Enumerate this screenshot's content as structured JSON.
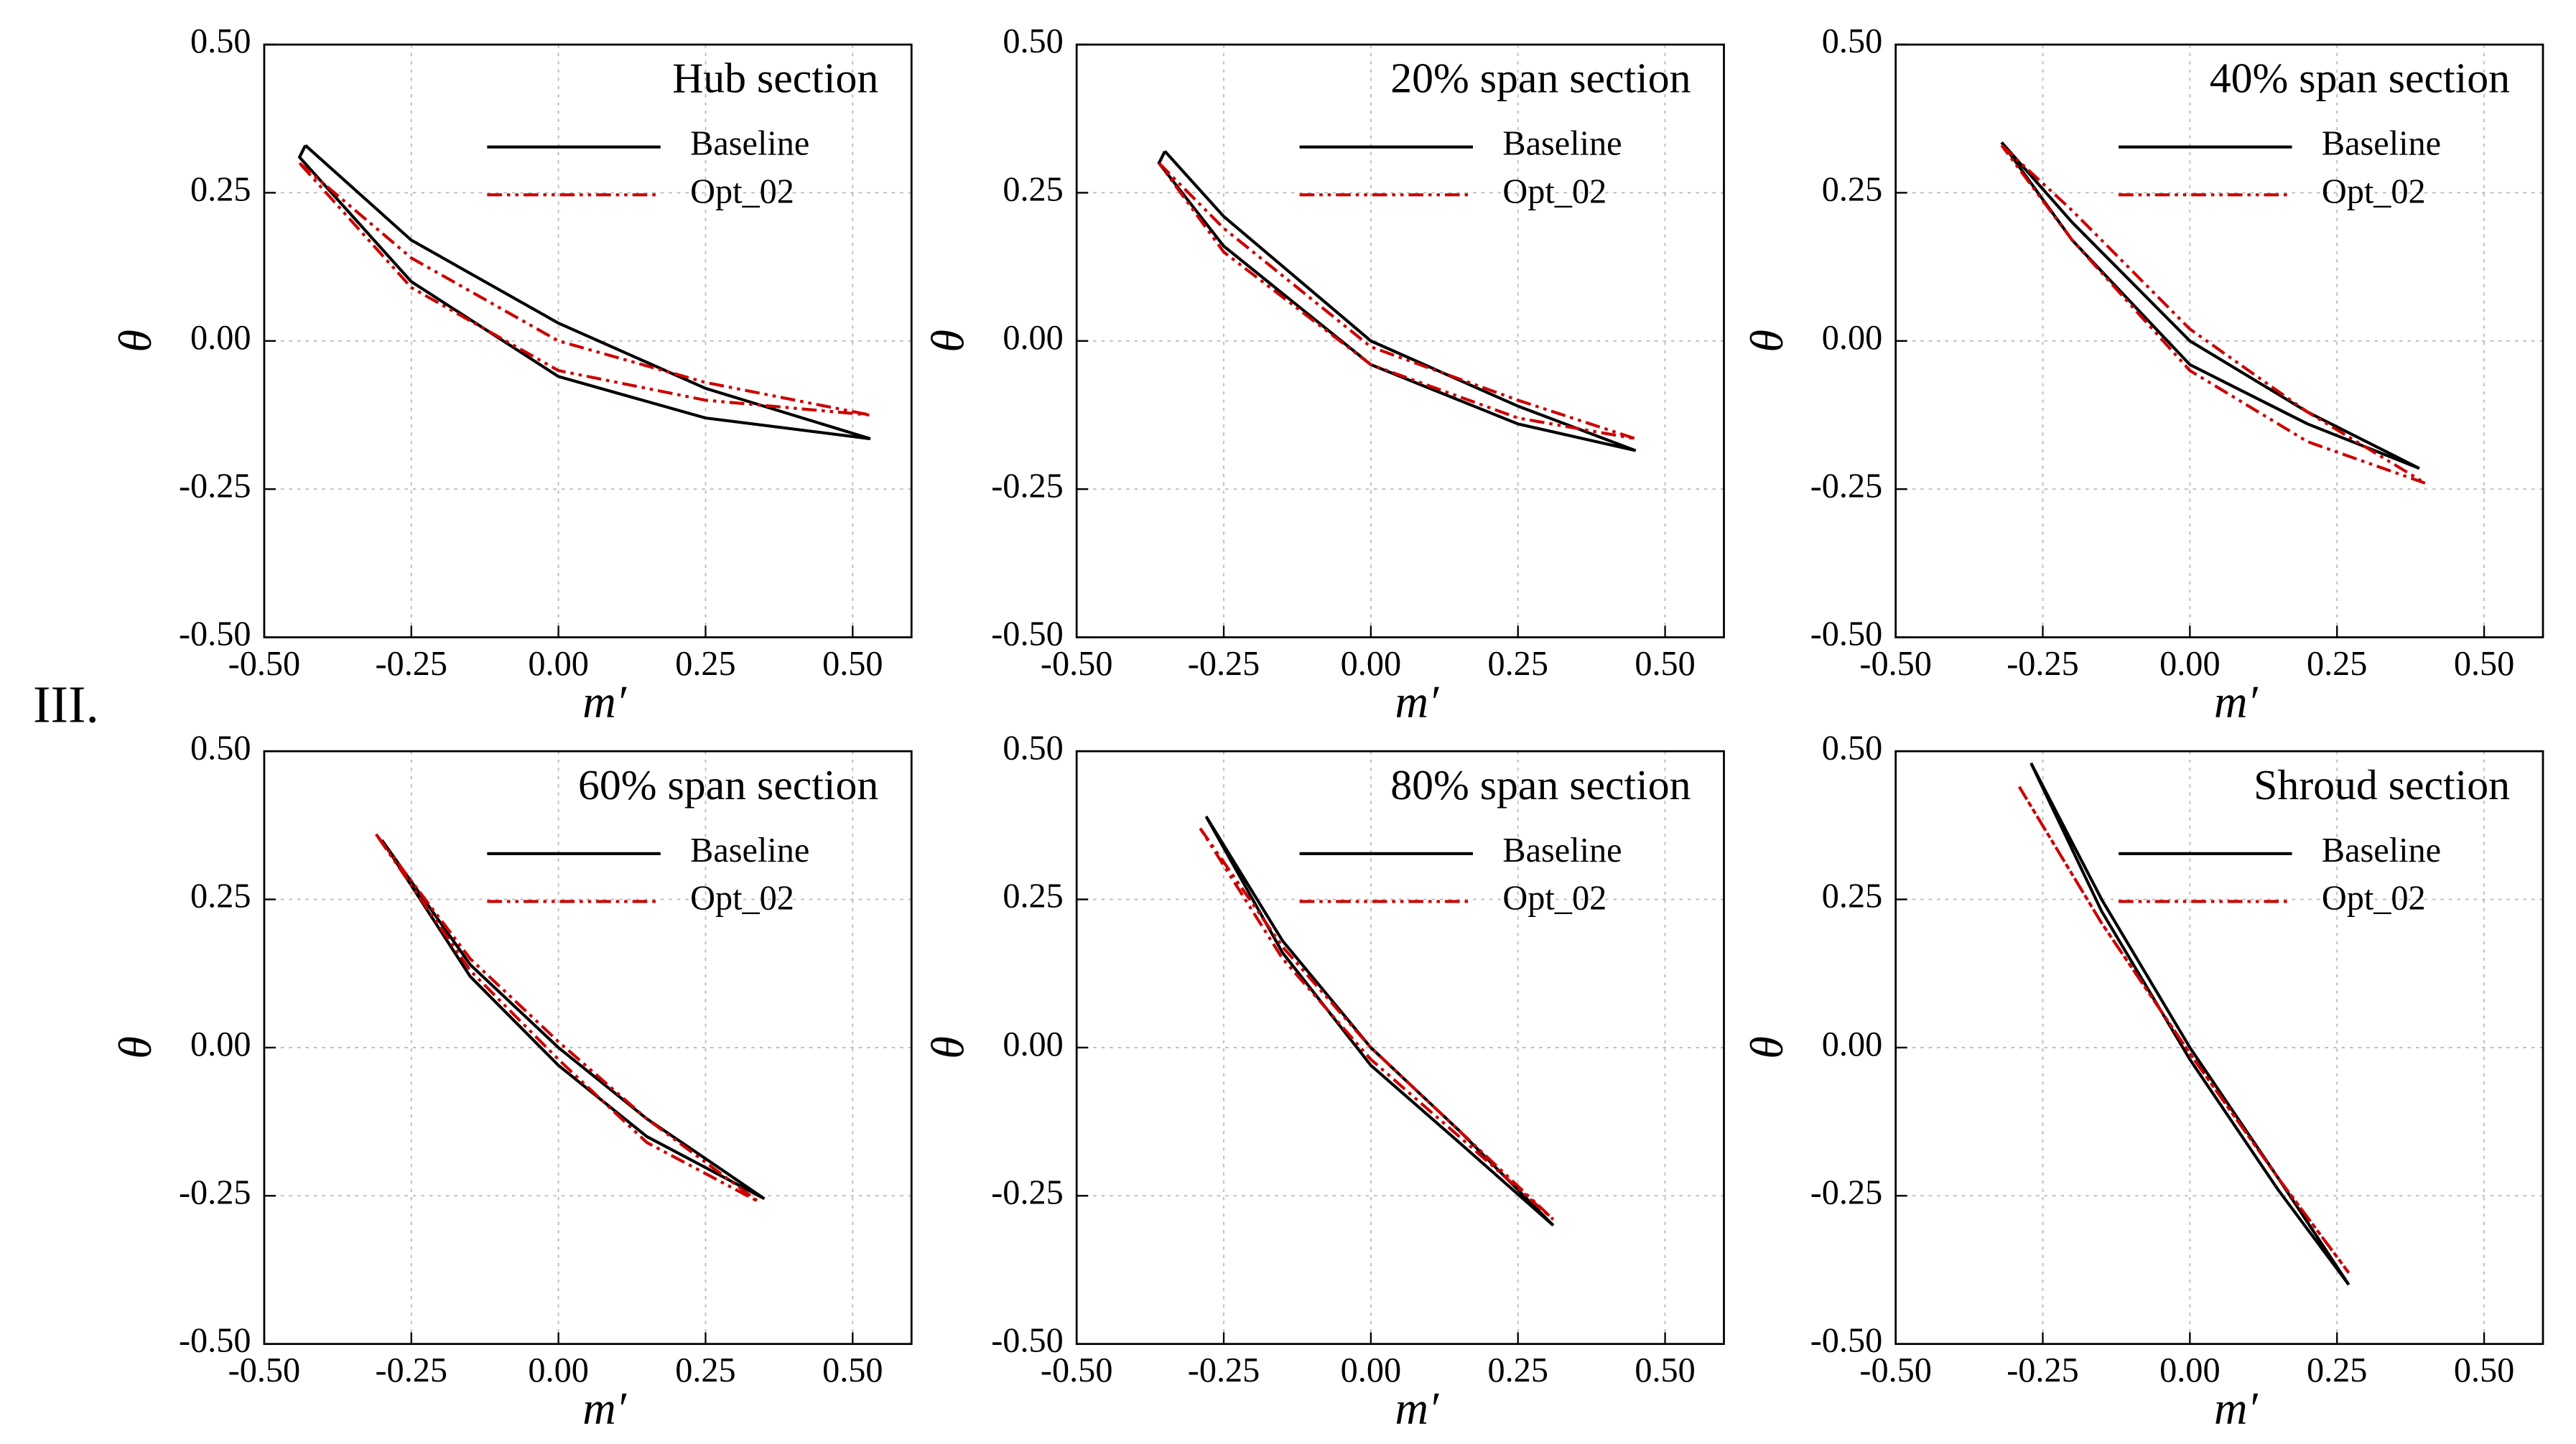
{
  "figure_label": "III.",
  "chart_data": [
    {
      "type": "line",
      "title": "Hub section",
      "x_label": "m′",
      "y_label": "θ",
      "xlim": [
        -0.5,
        0.6
      ],
      "ylim": [
        -0.5,
        0.5
      ],
      "grid": true,
      "legend": "top-right",
      "xticks": [
        {
          "value": -0.5,
          "label": "-0.50"
        },
        {
          "value": -0.25,
          "label": "-0.25"
        },
        {
          "value": 0,
          "label": "0.00"
        },
        {
          "value": 0.25,
          "label": "0.25"
        },
        {
          "value": 0.5,
          "label": "0.50"
        }
      ],
      "yticks": [
        {
          "value": -0.5,
          "label": "-0.50"
        },
        {
          "value": -0.25,
          "label": "-0.25"
        },
        {
          "value": 0,
          "label": "0.00"
        },
        {
          "value": 0.25,
          "label": "0.25"
        },
        {
          "value": 0.5,
          "label": "0.50"
        }
      ],
      "series": [
        {
          "name": "Baseline",
          "color": "#000000",
          "style": "solid",
          "x": [
            -0.43,
            -0.25,
            0,
            0.25,
            0.53,
            0.25,
            0,
            -0.25,
            -0.44,
            -0.43
          ],
          "values": [
            0.33,
            0.17,
            0.03,
            -0.08,
            -0.165,
            -0.13,
            -0.06,
            0.1,
            0.31,
            0.33
          ]
        },
        {
          "name": "Opt_02",
          "color": "#cc0000",
          "style": "dash-dot-dot",
          "x": [
            -0.44,
            -0.25,
            0,
            0.25,
            0.53,
            0.25,
            0,
            -0.25,
            -0.44
          ],
          "values": [
            0.3,
            0.14,
            0,
            -0.07,
            -0.125,
            -0.1,
            -0.05,
            0.09,
            0.3
          ]
        }
      ]
    },
    {
      "type": "line",
      "title": "20% span section",
      "x_label": "m′",
      "y_label": "θ",
      "xlim": [
        -0.5,
        0.6
      ],
      "ylim": [
        -0.5,
        0.5
      ],
      "grid": true,
      "legend": "top-right",
      "xticks": [
        {
          "value": -0.5,
          "label": "-0.50"
        },
        {
          "value": -0.25,
          "label": "-0.25"
        },
        {
          "value": 0,
          "label": "0.00"
        },
        {
          "value": 0.25,
          "label": "0.25"
        },
        {
          "value": 0.5,
          "label": "0.50"
        }
      ],
      "yticks": [
        {
          "value": -0.5,
          "label": "-0.50"
        },
        {
          "value": -0.25,
          "label": "-0.25"
        },
        {
          "value": 0,
          "label": "0.00"
        },
        {
          "value": 0.25,
          "label": "0.25"
        },
        {
          "value": 0.5,
          "label": "0.50"
        }
      ],
      "series": [
        {
          "name": "Baseline",
          "color": "#000000",
          "style": "solid",
          "x": [
            -0.35,
            -0.25,
            0,
            0.25,
            0.45,
            0.25,
            0,
            -0.25,
            -0.36,
            -0.35
          ],
          "values": [
            0.32,
            0.21,
            0,
            -0.11,
            -0.185,
            -0.14,
            -0.04,
            0.16,
            0.3,
            0.32
          ]
        },
        {
          "name": "Opt_02",
          "color": "#cc0000",
          "style": "dash-dot-dot",
          "x": [
            -0.36,
            -0.25,
            0,
            0.25,
            0.45,
            0.25,
            0,
            -0.25,
            -0.36
          ],
          "values": [
            0.3,
            0.19,
            -0.01,
            -0.1,
            -0.165,
            -0.13,
            -0.04,
            0.15,
            0.3
          ]
        }
      ]
    },
    {
      "type": "line",
      "title": "40% span section",
      "x_label": "m′",
      "y_label": "θ",
      "xlim": [
        -0.5,
        0.6
      ],
      "ylim": [
        -0.5,
        0.5
      ],
      "grid": true,
      "legend": "top-right",
      "xticks": [
        {
          "value": -0.5,
          "label": "-0.50"
        },
        {
          "value": -0.25,
          "label": "-0.25"
        },
        {
          "value": 0,
          "label": "0.00"
        },
        {
          "value": 0.25,
          "label": "0.25"
        },
        {
          "value": 0.5,
          "label": "0.50"
        }
      ],
      "yticks": [
        {
          "value": -0.5,
          "label": "-0.50"
        },
        {
          "value": -0.25,
          "label": "-0.25"
        },
        {
          "value": 0,
          "label": "0.00"
        },
        {
          "value": 0.25,
          "label": "0.25"
        },
        {
          "value": 0.5,
          "label": "0.50"
        }
      ],
      "series": [
        {
          "name": "Baseline",
          "color": "#000000",
          "style": "solid",
          "x": [
            -0.32,
            -0.2,
            0,
            0.2,
            0.39,
            0.2,
            0,
            -0.2,
            -0.32
          ],
          "values": [
            0.335,
            0.2,
            0,
            -0.12,
            -0.215,
            -0.14,
            -0.04,
            0.17,
            0.335
          ]
        },
        {
          "name": "Opt_02",
          "color": "#cc0000",
          "style": "dash-dot-dot",
          "x": [
            -0.32,
            -0.2,
            0,
            0.2,
            0.4,
            0.2,
            0,
            -0.2,
            -0.32
          ],
          "values": [
            0.33,
            0.22,
            0.02,
            -0.12,
            -0.24,
            -0.17,
            -0.05,
            0.17,
            0.33
          ]
        }
      ]
    },
    {
      "type": "line",
      "title": "60% span section",
      "x_label": "m′",
      "y_label": "θ",
      "xlim": [
        -0.5,
        0.6
      ],
      "ylim": [
        -0.5,
        0.5
      ],
      "grid": true,
      "legend": "top-right",
      "xticks": [
        {
          "value": -0.5,
          "label": "-0.50"
        },
        {
          "value": -0.25,
          "label": "-0.25"
        },
        {
          "value": 0,
          "label": "0.00"
        },
        {
          "value": 0.25,
          "label": "0.25"
        },
        {
          "value": 0.5,
          "label": "0.50"
        }
      ],
      "yticks": [
        {
          "value": -0.5,
          "label": "-0.50"
        },
        {
          "value": -0.25,
          "label": "-0.25"
        },
        {
          "value": 0,
          "label": "0.00"
        },
        {
          "value": 0.25,
          "label": "0.25"
        },
        {
          "value": 0.5,
          "label": "0.50"
        }
      ],
      "series": [
        {
          "name": "Baseline",
          "color": "#000000",
          "style": "solid",
          "x": [
            -0.3,
            -0.15,
            0,
            0.15,
            0.35,
            0.15,
            0,
            -0.15,
            -0.3
          ],
          "values": [
            0.35,
            0.14,
            0,
            -0.12,
            -0.255,
            -0.15,
            -0.03,
            0.12,
            0.35
          ]
        },
        {
          "name": "Opt_02",
          "color": "#cc0000",
          "style": "dash-dot-dot",
          "x": [
            -0.31,
            -0.15,
            0,
            0.15,
            0.34,
            0.15,
            0,
            -0.15,
            -0.31
          ],
          "values": [
            0.36,
            0.15,
            0.01,
            -0.12,
            -0.26,
            -0.16,
            -0.02,
            0.13,
            0.36
          ]
        }
      ]
    },
    {
      "type": "line",
      "title": "80% span section",
      "x_label": "m′",
      "y_label": "θ",
      "xlim": [
        -0.5,
        0.6
      ],
      "ylim": [
        -0.5,
        0.5
      ],
      "grid": true,
      "legend": "top-right",
      "xticks": [
        {
          "value": -0.5,
          "label": "-0.50"
        },
        {
          "value": -0.25,
          "label": "-0.25"
        },
        {
          "value": 0,
          "label": "0.00"
        },
        {
          "value": 0.25,
          "label": "0.25"
        },
        {
          "value": 0.5,
          "label": "0.50"
        }
      ],
      "yticks": [
        {
          "value": -0.5,
          "label": "-0.50"
        },
        {
          "value": -0.25,
          "label": "-0.25"
        },
        {
          "value": 0,
          "label": "0.00"
        },
        {
          "value": 0.25,
          "label": "0.25"
        },
        {
          "value": 0.5,
          "label": "0.50"
        }
      ],
      "series": [
        {
          "name": "Baseline",
          "color": "#000000",
          "style": "solid",
          "x": [
            -0.28,
            -0.15,
            0,
            0.15,
            0.31,
            0.15,
            0,
            -0.15,
            -0.28
          ],
          "values": [
            0.39,
            0.18,
            0,
            -0.14,
            -0.3,
            -0.16,
            -0.03,
            0.16,
            0.39
          ]
        },
        {
          "name": "Opt_02",
          "color": "#cc0000",
          "style": "dash-dot-dot",
          "x": [
            -0.29,
            -0.15,
            0,
            0.15,
            0.31,
            0.15,
            0,
            -0.15,
            -0.29
          ],
          "values": [
            0.37,
            0.17,
            0,
            -0.14,
            -0.29,
            -0.15,
            -0.02,
            0.15,
            0.37
          ]
        }
      ]
    },
    {
      "type": "line",
      "title": "Shroud section",
      "x_label": "m′",
      "y_label": "θ",
      "xlim": [
        -0.5,
        0.6
      ],
      "ylim": [
        -0.5,
        0.5
      ],
      "grid": true,
      "legend": "top-right",
      "xticks": [
        {
          "value": -0.5,
          "label": "-0.50"
        },
        {
          "value": -0.25,
          "label": "-0.25"
        },
        {
          "value": 0,
          "label": "0.00"
        },
        {
          "value": 0.25,
          "label": "0.25"
        },
        {
          "value": 0.5,
          "label": "0.50"
        }
      ],
      "yticks": [
        {
          "value": -0.5,
          "label": "-0.50"
        },
        {
          "value": -0.25,
          "label": "-0.25"
        },
        {
          "value": 0,
          "label": "0.00"
        },
        {
          "value": 0.25,
          "label": "0.25"
        },
        {
          "value": 0.5,
          "label": "0.50"
        }
      ],
      "series": [
        {
          "name": "Baseline",
          "color": "#000000",
          "style": "solid",
          "x": [
            -0.27,
            -0.15,
            0,
            0.15,
            0.27,
            0.15,
            0,
            -0.15,
            -0.27
          ],
          "values": [
            0.48,
            0.25,
            0,
            -0.22,
            -0.4,
            -0.24,
            -0.02,
            0.23,
            0.48
          ]
        },
        {
          "name": "Opt_02",
          "color": "#cc0000",
          "style": "dash-dot-dot",
          "x": [
            -0.29,
            -0.15,
            0,
            0.15,
            0.27,
            0.15,
            0,
            -0.15,
            -0.29
          ],
          "values": [
            0.44,
            0.21,
            -0.01,
            -0.22,
            -0.38,
            -0.22,
            -0.01,
            0.21,
            0.44
          ]
        }
      ]
    }
  ]
}
